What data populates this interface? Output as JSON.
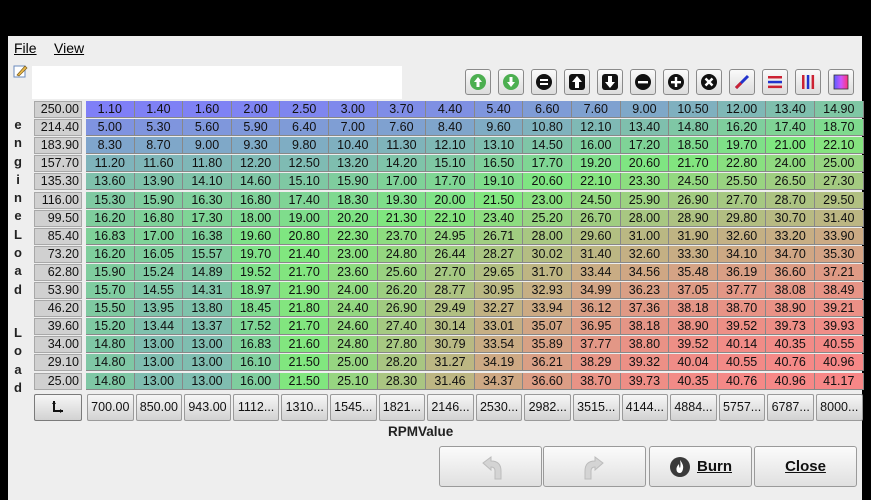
{
  "menu": {
    "file": "File",
    "view": "View"
  },
  "axis": {
    "y_label": "engineLoad",
    "y_label2": "Load",
    "x_label": "RPMValue"
  },
  "toolbar": {
    "icons": [
      "arrow-up-circle-icon",
      "arrow-down-circle-icon",
      "equals-icon",
      "increment-icon",
      "decrement-icon",
      "minus-icon",
      "plus-icon",
      "multiply-icon",
      "interpolate-icon",
      "horizontal-interpolate-icon",
      "vertical-interpolate-icon",
      "color-scale-icon"
    ]
  },
  "table": {
    "rows": [
      "250.00",
      "214.40",
      "183.90",
      "157.70",
      "135.30",
      "116.00",
      "99.50",
      "85.40",
      "73.20",
      "62.80",
      "53.90",
      "46.20",
      "39.60",
      "34.00",
      "29.10",
      "25.00"
    ],
    "cols": [
      "700.00",
      "850.00",
      "943.00",
      "1112...",
      "1310...",
      "1545...",
      "1821...",
      "2146...",
      "2530...",
      "2982...",
      "3515...",
      "4144...",
      "4884...",
      "5757...",
      "6787...",
      "8000..."
    ],
    "values": [
      [
        "1.10",
        "1.40",
        "1.60",
        "2.00",
        "2.50",
        "3.00",
        "3.70",
        "4.40",
        "5.40",
        "6.60",
        "7.60",
        "9.00",
        "10.50",
        "12.00",
        "13.40",
        "14.90"
      ],
      [
        "5.00",
        "5.30",
        "5.60",
        "5.90",
        "6.40",
        "7.00",
        "7.60",
        "8.40",
        "9.60",
        "10.80",
        "12.10",
        "13.40",
        "14.80",
        "16.20",
        "17.40",
        "18.70"
      ],
      [
        "8.30",
        "8.70",
        "9.00",
        "9.30",
        "9.80",
        "10.40",
        "11.30",
        "12.10",
        "13.10",
        "14.50",
        "16.00",
        "17.20",
        "18.50",
        "19.70",
        "21.00",
        "22.10"
      ],
      [
        "11.20",
        "11.60",
        "11.80",
        "12.20",
        "12.50",
        "13.20",
        "14.20",
        "15.10",
        "16.50",
        "17.70",
        "19.20",
        "20.60",
        "21.70",
        "22.80",
        "24.00",
        "25.00"
      ],
      [
        "13.60",
        "13.90",
        "14.10",
        "14.60",
        "15.10",
        "15.90",
        "17.00",
        "17.70",
        "19.10",
        "20.60",
        "22.10",
        "23.30",
        "24.50",
        "25.50",
        "26.50",
        "27.30"
      ],
      [
        "15.30",
        "15.90",
        "16.30",
        "16.80",
        "17.40",
        "18.30",
        "19.30",
        "20.00",
        "21.50",
        "23.00",
        "24.50",
        "25.90",
        "26.90",
        "27.70",
        "28.70",
        "29.50"
      ],
      [
        "16.20",
        "16.80",
        "17.30",
        "18.00",
        "19.00",
        "20.20",
        "21.30",
        "22.10",
        "23.40",
        "25.20",
        "26.70",
        "28.00",
        "28.90",
        "29.80",
        "30.70",
        "31.40"
      ],
      [
        "16.83",
        "17.00",
        "16.38",
        "19.60",
        "20.80",
        "22.30",
        "23.70",
        "24.95",
        "26.71",
        "28.00",
        "29.60",
        "31.00",
        "31.90",
        "32.60",
        "33.20",
        "33.90"
      ],
      [
        "16.20",
        "16.05",
        "15.57",
        "19.70",
        "21.40",
        "23.00",
        "24.80",
        "26.44",
        "28.27",
        "30.02",
        "31.40",
        "32.60",
        "33.30",
        "34.10",
        "34.70",
        "35.30"
      ],
      [
        "15.90",
        "15.24",
        "14.89",
        "19.52",
        "21.70",
        "23.60",
        "25.60",
        "27.70",
        "29.65",
        "31.70",
        "33.44",
        "34.56",
        "35.48",
        "36.19",
        "36.60",
        "37.21"
      ],
      [
        "15.70",
        "14.55",
        "14.31",
        "18.97",
        "21.90",
        "24.00",
        "26.20",
        "28.77",
        "30.95",
        "32.93",
        "34.99",
        "36.23",
        "37.05",
        "37.77",
        "38.08",
        "38.49"
      ],
      [
        "15.50",
        "13.95",
        "13.80",
        "18.45",
        "21.80",
        "24.40",
        "26.90",
        "29.49",
        "32.27",
        "33.94",
        "36.12",
        "37.36",
        "38.18",
        "38.70",
        "38.90",
        "39.21"
      ],
      [
        "15.20",
        "13.44",
        "13.37",
        "17.52",
        "21.70",
        "24.60",
        "27.40",
        "30.14",
        "33.01",
        "35.07",
        "36.95",
        "38.18",
        "38.90",
        "39.52",
        "39.73",
        "39.93"
      ],
      [
        "14.80",
        "13.00",
        "13.00",
        "16.83",
        "21.60",
        "24.80",
        "27.80",
        "30.79",
        "33.54",
        "35.89",
        "37.77",
        "38.80",
        "39.52",
        "40.14",
        "40.35",
        "40.55"
      ],
      [
        "14.80",
        "13.00",
        "13.00",
        "16.10",
        "21.50",
        "25.00",
        "28.20",
        "31.27",
        "34.19",
        "36.21",
        "38.29",
        "39.32",
        "40.04",
        "40.55",
        "40.76",
        "40.96"
      ],
      [
        "14.80",
        "13.00",
        "13.00",
        "16.00",
        "21.50",
        "25.10",
        "28.30",
        "31.46",
        "34.37",
        "36.60",
        "38.70",
        "39.73",
        "40.35",
        "40.76",
        "40.96",
        "41.17"
      ]
    ]
  },
  "buttons": {
    "undo": "",
    "redo": "",
    "burn": "Burn",
    "close": "Close"
  },
  "colors": {
    "low": "#7f7ff7",
    "mid": "#7fe87f",
    "high": "#f78787"
  }
}
